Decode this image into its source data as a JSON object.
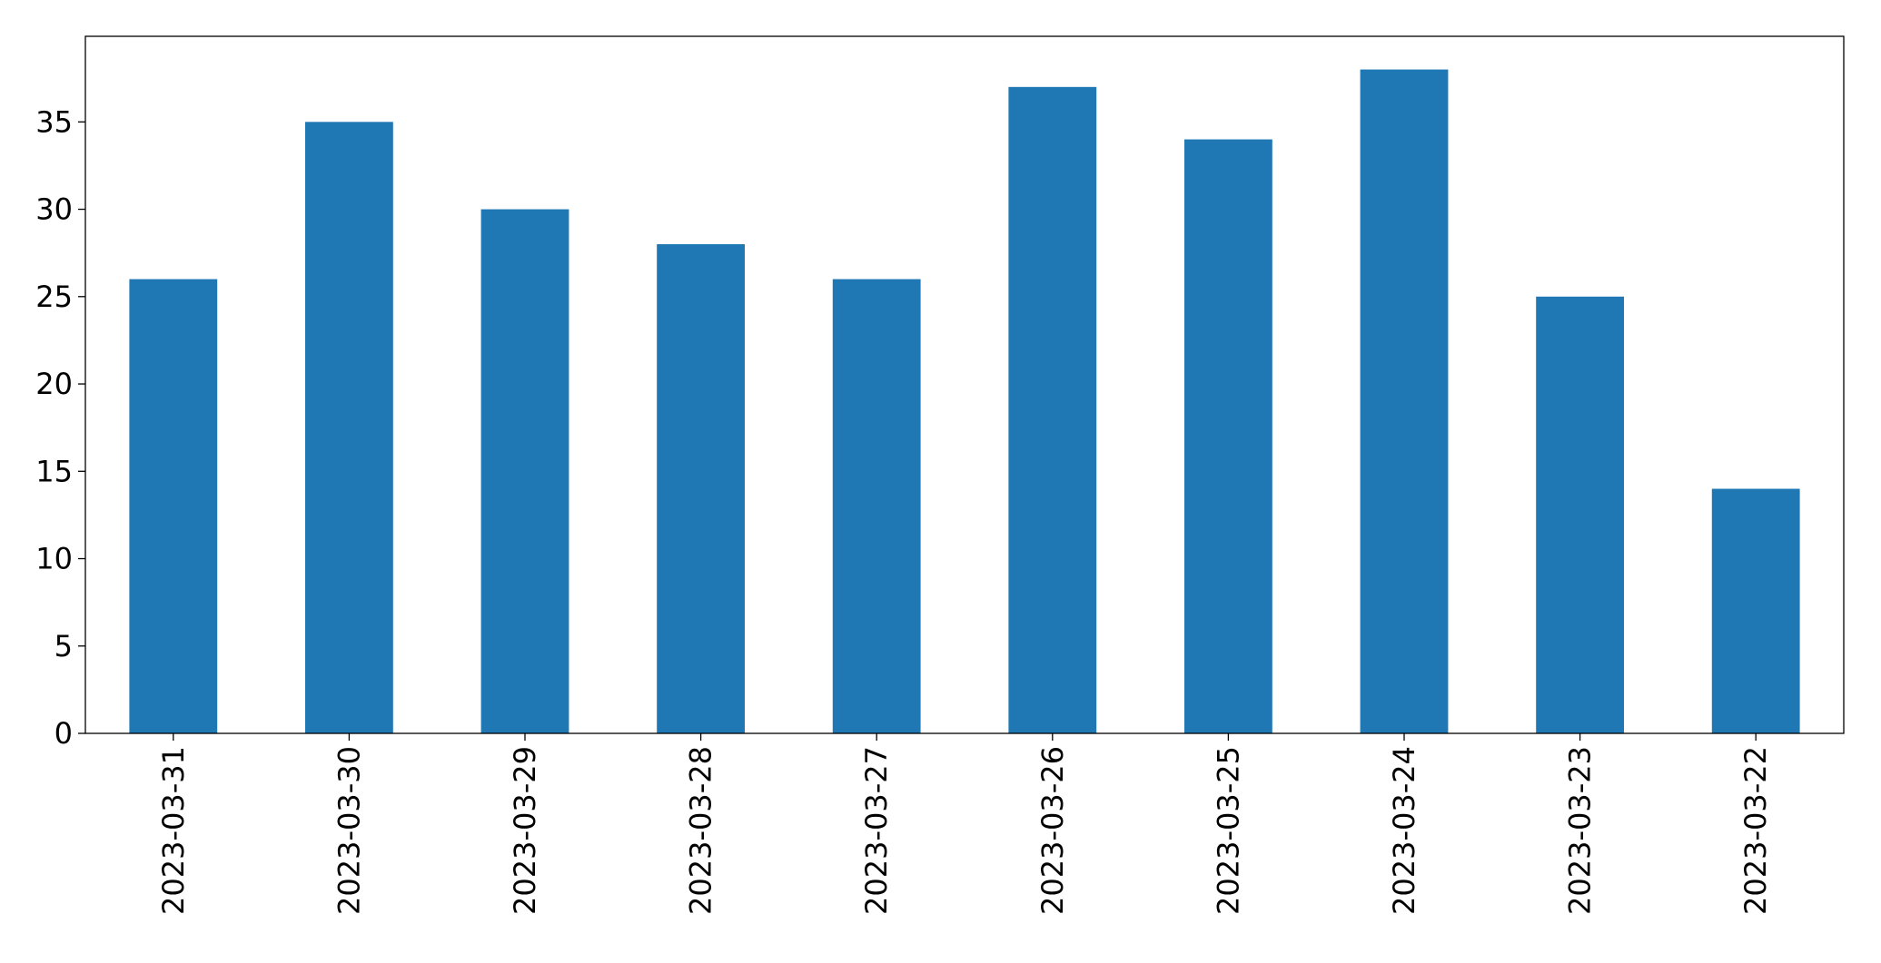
{
  "chart_data": {
    "type": "bar",
    "categories": [
      "2023-03-31",
      "2023-03-30",
      "2023-03-29",
      "2023-03-28",
      "2023-03-27",
      "2023-03-26",
      "2023-03-25",
      "2023-03-24",
      "2023-03-23",
      "2023-03-22"
    ],
    "values": [
      26,
      35,
      30,
      28,
      26,
      37,
      34,
      38,
      25,
      14
    ],
    "color": "#1f77b4",
    "ylim": [
      0,
      39.9
    ],
    "yticks": [
      0,
      5,
      10,
      15,
      20,
      25,
      30,
      35
    ],
    "grid": false
  }
}
